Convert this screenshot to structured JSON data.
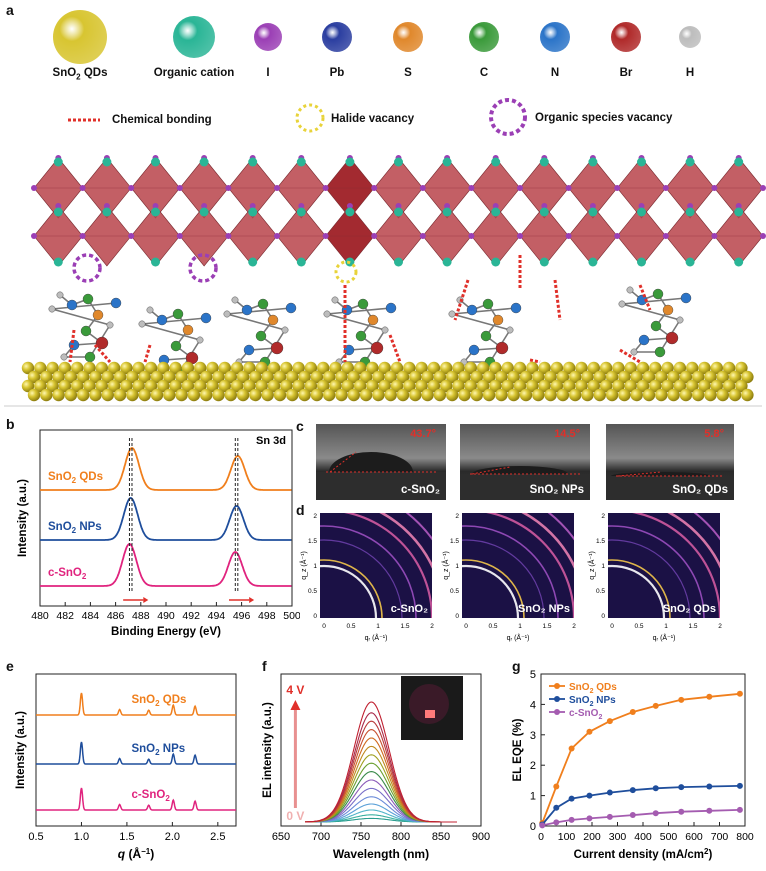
{
  "panel_labels": {
    "a": "a",
    "b": "b",
    "c": "c",
    "d": "d",
    "e": "e",
    "f": "f",
    "g": "g"
  },
  "legend": {
    "items": [
      {
        "label": "SnO₂ QDs",
        "color": "#d8c531"
      },
      {
        "label": "Organic cation",
        "color": "#2ab596"
      },
      {
        "label": "I",
        "color": "#9b3fb5"
      },
      {
        "label": "Pb",
        "color": "#2b3ea0"
      },
      {
        "label": "S",
        "color": "#e0882c"
      },
      {
        "label": "C",
        "color": "#3a9a3a"
      },
      {
        "label": "N",
        "color": "#2b74c8"
      },
      {
        "label": "Br",
        "color": "#b02a2a"
      },
      {
        "label": "H",
        "color": "#bdbdbd"
      }
    ],
    "chemical_bonding": "Chemical bonding",
    "halide_vacancy": "Halide vacancy",
    "organic_vacancy": "Organic species vacancy"
  },
  "colors": {
    "qds": "#f07f1d",
    "nps": "#1f4e9c",
    "csno2": "#e0237e",
    "octa": "#b8434a",
    "highlight": "#e0302a"
  },
  "panel_b": {
    "title": "Sn 3d",
    "xlabel": "Binding Energy (eV)",
    "ylabel": "Intensity (a.u.)",
    "series_labels": [
      "SnO₂ QDs",
      "SnO₂ NPs",
      "c-SnO₂"
    ]
  },
  "panel_c": [
    {
      "angle": "43.7°",
      "caption": "c-SnO₂"
    },
    {
      "angle": "14.5°",
      "caption": "SnO₂ NPs"
    },
    {
      "angle": "5.8°",
      "caption": "SnO₂ QDs"
    }
  ],
  "panel_d": {
    "captions": [
      "c-SnO₂",
      "SnO₂ NPs",
      "SnO₂ QDs"
    ],
    "xlabel": "qᵣ (Å⁻¹)",
    "ylabel": "q_z (Å⁻¹)"
  },
  "panel_e": {
    "xlabel": "q (Å⁻¹)",
    "ylabel": "Intensity (a.u.)",
    "series_labels": [
      "SnO₂ QDs",
      "SnO₂ NPs",
      "c-SnO₂"
    ]
  },
  "panel_f": {
    "xlabel": "Wavelength (nm)",
    "ylabel": "EL intensity (a.u.)",
    "top_label": "4 V",
    "bottom_label": "0 V"
  },
  "panel_g": {
    "xlabel": "Current density (mA/cm²)",
    "ylabel": "EL EQE (%)",
    "legend": [
      "SnO₂ QDs",
      "SnO₂ NPs",
      "c-SnO₂"
    ]
  },
  "chart_data": [
    {
      "id": "b",
      "type": "line",
      "title": "Sn 3d",
      "xlabel": "Binding Energy (eV)",
      "ylabel": "Intensity (a.u.)",
      "xlim": [
        480,
        500
      ],
      "xticks": [
        480,
        482,
        484,
        486,
        488,
        490,
        492,
        494,
        496,
        498,
        500
      ],
      "series": [
        {
          "name": "SnO₂ QDs",
          "peaks": [
            487.3,
            495.7
          ]
        },
        {
          "name": "SnO₂ NPs",
          "peaks": [
            487.2,
            495.6
          ]
        },
        {
          "name": "c-SnO₂",
          "peaks": [
            487.1,
            495.5
          ]
        }
      ]
    },
    {
      "id": "e",
      "type": "line",
      "xlabel": "q (Å⁻¹)",
      "ylabel": "Intensity (a.u.)",
      "xlim": [
        0.5,
        2.7
      ],
      "xticks": [
        0.5,
        1.0,
        1.5,
        2.0,
        2.5
      ],
      "series": [
        {
          "name": "SnO₂ QDs",
          "peaks": [
            1.0,
            1.42,
            1.74,
            2.01,
            2.25
          ]
        },
        {
          "name": "SnO₂ NPs",
          "peaks": [
            1.0,
            1.42,
            1.74,
            2.01,
            2.25
          ]
        },
        {
          "name": "c-SnO₂",
          "peaks": [
            1.0,
            1.42,
            1.74,
            2.01,
            2.25
          ]
        }
      ]
    },
    {
      "id": "f",
      "type": "line",
      "xlabel": "Wavelength (nm)",
      "ylabel": "EL intensity (a.u.)",
      "xlim": [
        650,
        900
      ],
      "xticks": [
        650,
        700,
        750,
        800,
        850,
        900
      ],
      "peak_nm": 763,
      "relative_peaks": [
        0.03,
        0.06,
        0.1,
        0.15,
        0.21,
        0.28,
        0.35,
        0.42,
        0.49,
        0.56,
        0.63,
        0.7,
        0.77,
        0.84,
        0.91,
        1.0
      ]
    },
    {
      "id": "g",
      "type": "line",
      "xlabel": "Current density (mA/cm²)",
      "ylabel": "EL EQE (%)",
      "xlim": [
        0,
        800
      ],
      "ylim": [
        0,
        5
      ],
      "xticks": [
        0,
        100,
        200,
        300,
        400,
        500,
        600,
        700,
        800
      ],
      "yticks": [
        0,
        1,
        2,
        3,
        4,
        5
      ],
      "series": [
        {
          "name": "SnO₂ QDs",
          "x": [
            5,
            60,
            120,
            190,
            270,
            360,
            450,
            550,
            660,
            780
          ],
          "y": [
            0.1,
            1.3,
            2.55,
            3.1,
            3.45,
            3.75,
            3.95,
            4.15,
            4.25,
            4.35
          ]
        },
        {
          "name": "SnO₂ NPs",
          "x": [
            5,
            60,
            120,
            190,
            270,
            360,
            450,
            550,
            660,
            780
          ],
          "y": [
            0.05,
            0.6,
            0.9,
            1.0,
            1.1,
            1.18,
            1.24,
            1.28,
            1.3,
            1.32
          ]
        },
        {
          "name": "c-SnO₂",
          "x": [
            5,
            60,
            120,
            190,
            270,
            360,
            450,
            550,
            660,
            780
          ],
          "y": [
            0.02,
            0.12,
            0.2,
            0.25,
            0.3,
            0.36,
            0.42,
            0.47,
            0.5,
            0.53
          ]
        }
      ]
    }
  ]
}
